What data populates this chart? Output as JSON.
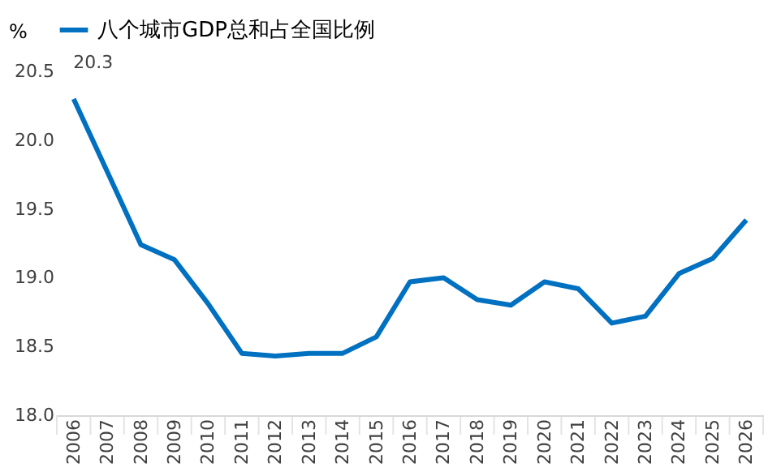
{
  "chart_data": {
    "type": "line",
    "ylabel": "%",
    "categories": [
      "2006",
      "2007",
      "2008",
      "2009",
      "2010",
      "2011",
      "2012",
      "2013",
      "2014",
      "2015",
      "2016",
      "2017",
      "2018",
      "2019",
      "2020",
      "2021",
      "2022",
      "2023",
      "2024",
      "2025",
      "2026"
    ],
    "series": [
      {
        "name": "八个城市GDP总和占全国比例",
        "color": "#0070c0",
        "values": [
          20.3,
          19.77,
          19.24,
          19.13,
          18.81,
          18.45,
          18.43,
          18.45,
          18.45,
          18.57,
          18.97,
          19.0,
          18.84,
          18.8,
          18.97,
          18.92,
          18.67,
          18.72,
          19.03,
          19.14,
          19.42
        ]
      }
    ],
    "annotations": [
      {
        "text": "20.3",
        "x": "2006",
        "y": 20.3
      }
    ],
    "ylim": [
      18.0,
      20.5
    ],
    "yticks": [
      {
        "value": 18.0,
        "label": "18.0"
      },
      {
        "value": 18.5,
        "label": "18.5"
      },
      {
        "value": 19.0,
        "label": "19.0"
      },
      {
        "value": 19.5,
        "label": "19.5"
      },
      {
        "value": 20.0,
        "label": "20.0"
      },
      {
        "value": 20.5,
        "label": "20.5"
      }
    ],
    "grid": false,
    "legend": "top",
    "marker": "none",
    "line_style": "solid"
  }
}
